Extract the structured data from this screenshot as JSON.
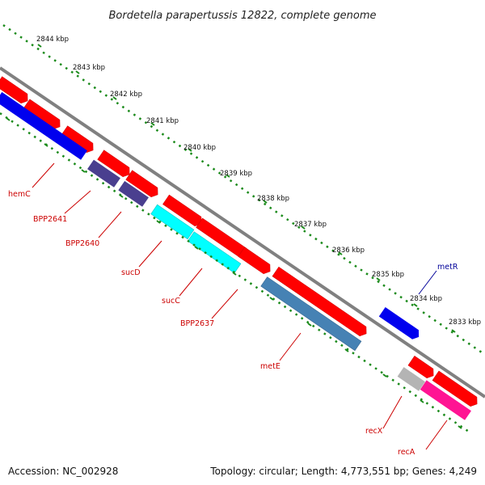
{
  "title": "Bordetella parapertussis 12822, complete genome",
  "footer": {
    "accession": "Accession: NC_002928",
    "topology": "Topology: circular; Length: 4,773,551 bp; Genes: 4,249"
  },
  "scale_labels": [
    "2844 kbp",
    "2843 kbp",
    "2842 kbp",
    "2841 kbp",
    "2840 kbp",
    "2839 kbp",
    "2838 kbp",
    "2837 kbp",
    "2836 kbp",
    "2835 kbp",
    "2834 kbp",
    "2833 kbp"
  ],
  "gene_labels": {
    "hemC": "hemC",
    "BPP2641": "BPP2641",
    "BPP2640": "BPP2640",
    "sucD": "sucD",
    "sucC": "sucC",
    "BPP2637": "BPP2637",
    "metE": "metE",
    "metR": "metR",
    "recX": "recX",
    "recA": "recA"
  },
  "colors": {
    "forward_cds": "#ff0000",
    "hemC": "#0000ee",
    "BPP2641": "#4a3f8f",
    "BPP2640": "#4a3f8f",
    "sucD": "#00ffff",
    "sucC": "#00ffff",
    "metE": "#4682b4",
    "metR": "#0000ee",
    "recX": "#b4b4b4",
    "recA": "#ff1493",
    "backbone": "#808080",
    "tick_dots": "#1a8a1a",
    "label_red": "#cc0000",
    "label_blue": "#000099"
  }
}
